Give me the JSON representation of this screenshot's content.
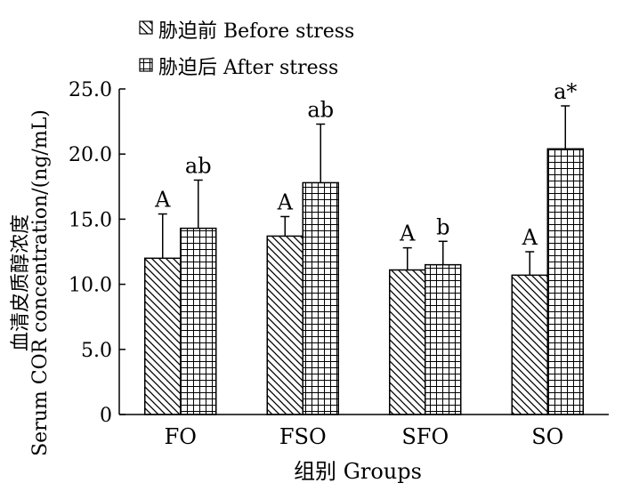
{
  "chart_data": {
    "type": "bar",
    "categories": [
      "FO",
      "FSO",
      "SFO",
      "SO"
    ],
    "series": [
      {
        "name": "胁迫前 Before stress",
        "pattern": "diagonal-hatch",
        "values": [
          12.0,
          13.7,
          11.1,
          10.7
        ],
        "error": [
          3.4,
          1.5,
          1.7,
          1.8
        ],
        "labels": [
          "A",
          "A",
          "A",
          "A"
        ]
      },
      {
        "name": "胁迫后 After stress",
        "pattern": "grid-hatch",
        "values": [
          14.3,
          17.8,
          11.5,
          20.4
        ],
        "error": [
          3.7,
          4.5,
          1.8,
          3.3
        ],
        "labels": [
          "ab",
          "ab",
          "b",
          "a*"
        ]
      }
    ],
    "ylim": [
      0,
      25
    ],
    "yticks": [
      "0",
      "5.0",
      "10.0",
      "15.0",
      "20.0",
      "25.0"
    ],
    "ylabel_cn": "血清皮质醇浓度",
    "ylabel_en": "Serum COR concentration/(ng/mL)",
    "xlabel": "组别  Groups",
    "legend_position": "top-left",
    "grid": false
  }
}
